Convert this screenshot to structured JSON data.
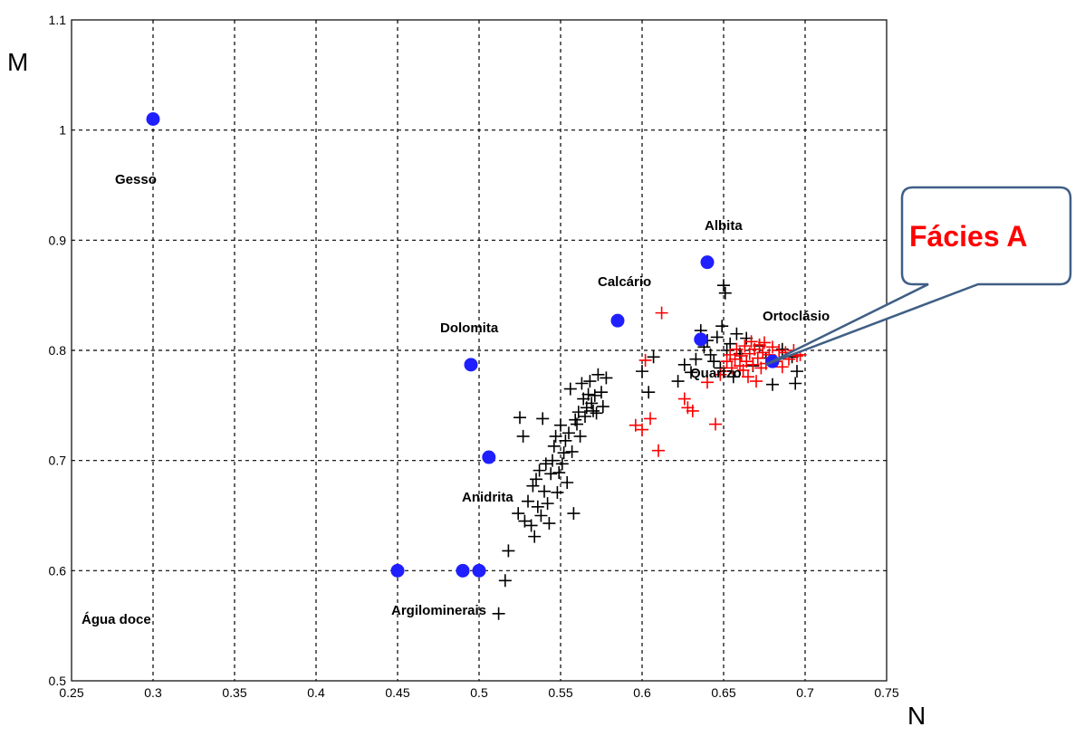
{
  "chart_data": {
    "type": "scatter",
    "title": "",
    "xlabel": "N",
    "ylabel": "M",
    "xlim": [
      0.25,
      0.75
    ],
    "ylim": [
      0.5,
      1.1
    ],
    "grid": true,
    "x_ticks": [
      "0.25",
      "0.3",
      "0.35",
      "0.4",
      "0.45",
      "0.5",
      "0.55",
      "0.6",
      "0.65",
      "0.7",
      "0.75"
    ],
    "y_ticks": [
      "0.5",
      "0.6",
      "0.7",
      "0.8",
      "0.9",
      "1",
      "1.1"
    ],
    "colors": {
      "minerals": "#1f1fff",
      "black_series": "#000000",
      "red_series": "#ff0000",
      "callout_border": "#3f5f85",
      "callout_text": "#ff0000"
    },
    "minerals": [
      {
        "name": "Gesso",
        "x": 0.3,
        "y": 1.01
      },
      {
        "name": "Albita",
        "x": 0.64,
        "y": 0.88
      },
      {
        "name": "Calcário",
        "x": 0.585,
        "y": 0.827
      },
      {
        "name": "Dolomita",
        "x": 0.495,
        "y": 0.787
      },
      {
        "name": "Ortoclásio",
        "x": 0.68,
        "y": 0.79
      },
      {
        "name": "Quartzo",
        "x": 0.636,
        "y": 0.81
      },
      {
        "name": "Anidrita",
        "x": 0.506,
        "y": 0.703
      },
      {
        "name": "Argilominerais",
        "x": 0.45,
        "y": 0.6
      },
      {
        "name": "Argilominerais",
        "x": 0.49,
        "y": 0.6
      },
      {
        "name": "Argilominerais",
        "x": 0.5,
        "y": 0.6
      }
    ],
    "annotations": [
      "Gesso",
      "Albita",
      "Calcário",
      "Dolomita",
      "Ortoclásio",
      "Quartzo",
      "Anidrita",
      "Argilominerais",
      "Água doce"
    ],
    "black_points": [
      [
        0.512,
        0.561
      ],
      [
        0.516,
        0.591
      ],
      [
        0.518,
        0.618
      ],
      [
        0.524,
        0.652
      ],
      [
        0.525,
        0.739
      ],
      [
        0.527,
        0.722
      ],
      [
        0.528,
        0.645
      ],
      [
        0.53,
        0.663
      ],
      [
        0.532,
        0.641
      ],
      [
        0.533,
        0.677
      ],
      [
        0.534,
        0.631
      ],
      [
        0.535,
        0.683
      ],
      [
        0.536,
        0.658
      ],
      [
        0.537,
        0.691
      ],
      [
        0.538,
        0.65
      ],
      [
        0.539,
        0.738
      ],
      [
        0.54,
        0.672
      ],
      [
        0.541,
        0.697
      ],
      [
        0.542,
        0.661
      ],
      [
        0.543,
        0.643
      ],
      [
        0.544,
        0.688
      ],
      [
        0.545,
        0.7
      ],
      [
        0.546,
        0.713
      ],
      [
        0.547,
        0.722
      ],
      [
        0.548,
        0.671
      ],
      [
        0.549,
        0.689
      ],
      [
        0.55,
        0.732
      ],
      [
        0.551,
        0.697
      ],
      [
        0.552,
        0.707
      ],
      [
        0.553,
        0.718
      ],
      [
        0.554,
        0.68
      ],
      [
        0.555,
        0.725
      ],
      [
        0.556,
        0.765
      ],
      [
        0.557,
        0.708
      ],
      [
        0.558,
        0.652
      ],
      [
        0.559,
        0.737
      ],
      [
        0.56,
        0.733
      ],
      [
        0.561,
        0.744
      ],
      [
        0.562,
        0.722
      ],
      [
        0.563,
        0.77
      ],
      [
        0.564,
        0.756
      ],
      [
        0.565,
        0.74
      ],
      [
        0.566,
        0.748
      ],
      [
        0.567,
        0.76
      ],
      [
        0.568,
        0.772
      ],
      [
        0.569,
        0.752
      ],
      [
        0.57,
        0.745
      ],
      [
        0.571,
        0.759
      ],
      [
        0.572,
        0.743
      ],
      [
        0.573,
        0.778
      ],
      [
        0.575,
        0.762
      ],
      [
        0.576,
        0.749
      ],
      [
        0.578,
        0.775
      ],
      [
        0.6,
        0.781
      ],
      [
        0.604,
        0.762
      ],
      [
        0.607,
        0.794
      ],
      [
        0.622,
        0.772
      ],
      [
        0.626,
        0.787
      ],
      [
        0.63,
        0.78
      ],
      [
        0.633,
        0.792
      ],
      [
        0.636,
        0.818
      ],
      [
        0.638,
        0.803
      ],
      [
        0.64,
        0.809
      ],
      [
        0.642,
        0.796
      ],
      [
        0.644,
        0.79
      ],
      [
        0.646,
        0.812
      ],
      [
        0.648,
        0.784
      ],
      [
        0.649,
        0.822
      ],
      [
        0.65,
        0.859
      ],
      [
        0.651,
        0.852
      ],
      [
        0.652,
        0.8
      ],
      [
        0.654,
        0.806
      ],
      [
        0.656,
        0.776
      ],
      [
        0.658,
        0.815
      ],
      [
        0.66,
        0.797
      ],
      [
        0.664,
        0.811
      ],
      [
        0.668,
        0.786
      ],
      [
        0.672,
        0.804
      ],
      [
        0.676,
        0.793
      ],
      [
        0.68,
        0.769
      ],
      [
        0.686,
        0.801
      ],
      [
        0.692,
        0.794
      ],
      [
        0.694,
        0.77
      ],
      [
        0.695,
        0.781
      ]
    ],
    "red_points": [
      [
        0.596,
        0.732
      ],
      [
        0.6,
        0.728
      ],
      [
        0.602,
        0.791
      ],
      [
        0.605,
        0.738
      ],
      [
        0.61,
        0.709
      ],
      [
        0.612,
        0.834
      ],
      [
        0.626,
        0.756
      ],
      [
        0.628,
        0.748
      ],
      [
        0.631,
        0.745
      ],
      [
        0.64,
        0.771
      ],
      [
        0.645,
        0.733
      ],
      [
        0.648,
        0.778
      ],
      [
        0.65,
        0.781
      ],
      [
        0.652,
        0.79
      ],
      [
        0.654,
        0.796
      ],
      [
        0.655,
        0.784
      ],
      [
        0.657,
        0.792
      ],
      [
        0.658,
        0.801
      ],
      [
        0.66,
        0.786
      ],
      [
        0.661,
        0.795
      ],
      [
        0.662,
        0.782
      ],
      [
        0.663,
        0.804
      ],
      [
        0.664,
        0.79
      ],
      [
        0.665,
        0.776
      ],
      [
        0.666,
        0.797
      ],
      [
        0.667,
        0.808
      ],
      [
        0.668,
        0.787
      ],
      [
        0.669,
        0.801
      ],
      [
        0.67,
        0.772
      ],
      [
        0.671,
        0.793
      ],
      [
        0.672,
        0.805
      ],
      [
        0.673,
        0.784
      ],
      [
        0.674,
        0.798
      ],
      [
        0.675,
        0.807
      ],
      [
        0.676,
        0.788
      ],
      [
        0.678,
        0.796
      ],
      [
        0.68,
        0.803
      ],
      [
        0.682,
        0.79
      ],
      [
        0.684,
        0.8
      ],
      [
        0.686,
        0.785
      ],
      [
        0.688,
        0.798
      ],
      [
        0.69,
        0.792
      ],
      [
        0.693,
        0.8
      ],
      [
        0.695,
        0.795
      ],
      [
        0.697,
        0.796
      ]
    ]
  },
  "callout": {
    "text": "Fácies A"
  }
}
